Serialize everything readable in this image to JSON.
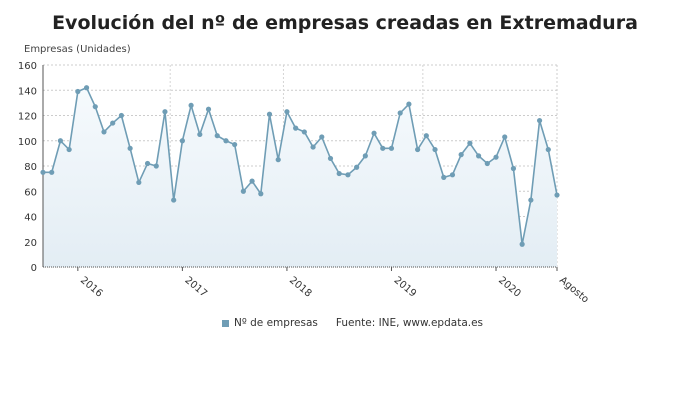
{
  "chart_data": {
    "type": "line",
    "title": "Evolución del nº de empresas creadas en Extremadura",
    "ylabel": "Empresas (Unidades)",
    "xlabel": "",
    "ylim": [
      0,
      160
    ],
    "yticks": [
      0,
      20,
      40,
      60,
      80,
      100,
      120,
      140,
      160
    ],
    "xticks": [
      {
        "index": 4,
        "label": "2016"
      },
      {
        "index": 16,
        "label": "2017"
      },
      {
        "index": 28,
        "label": "2018"
      },
      {
        "index": 40,
        "label": "2019"
      },
      {
        "index": 52,
        "label": "2020"
      },
      {
        "index": 59,
        "label": "Agosto"
      }
    ],
    "grid": true,
    "legend_position": "bottom",
    "series": [
      {
        "name": "Nº de empresas",
        "color": "#6f9db5",
        "values": [
          75,
          75,
          100,
          93,
          139,
          142,
          127,
          107,
          114,
          120,
          94,
          67,
          82,
          80,
          123,
          53,
          100,
          128,
          105,
          125,
          104,
          100,
          97,
          60,
          68,
          58,
          121,
          85,
          123,
          110,
          107,
          95,
          103,
          86,
          74,
          73,
          79,
          88,
          106,
          94,
          94,
          122,
          129,
          93,
          104,
          93,
          71,
          73,
          89,
          98,
          88,
          82,
          87,
          103,
          78,
          18,
          53,
          116,
          93,
          57
        ]
      }
    ],
    "source": "Fuente: INE, www.epdata.es"
  }
}
